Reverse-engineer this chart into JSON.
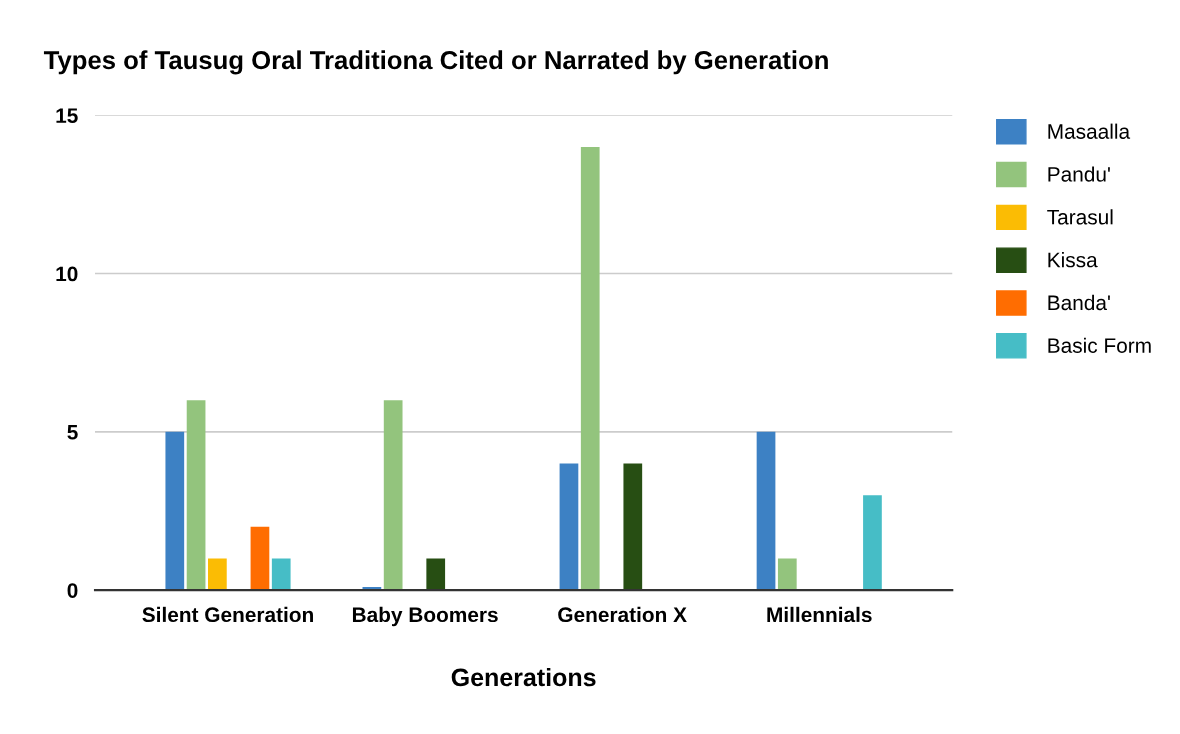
{
  "chart_data": {
    "type": "bar",
    "title": "Types of Tausug Oral Traditiona Cited or Narrated by Generation",
    "xlabel": "Generations",
    "categories": [
      "Silent Generation",
      "Baby Boomers",
      "Generation X",
      "Millennials"
    ],
    "series": [
      {
        "name": "Masaalla",
        "color": "#3d81c4",
        "values": [
          5,
          0.1,
          4,
          5
        ]
      },
      {
        "name": "Pandu'",
        "color": "#93c47d",
        "values": [
          6,
          6,
          14,
          1
        ]
      },
      {
        "name": "Tarasul",
        "color": "#fbbc04",
        "values": [
          1,
          0,
          0,
          0
        ]
      },
      {
        "name": "Kissa",
        "color": "#274e13",
        "values": [
          0,
          1,
          4,
          0
        ]
      },
      {
        "name": "Banda'",
        "color": "#ff6d01",
        "values": [
          2,
          0,
          0,
          0
        ]
      },
      {
        "name": "Basic Form",
        "color": "#46bdc6",
        "values": [
          1,
          0,
          0,
          3
        ]
      }
    ],
    "ylim": [
      0,
      15
    ],
    "yticks": [
      0,
      5,
      10,
      15
    ],
    "grid": "y",
    "legend": "top right"
  }
}
